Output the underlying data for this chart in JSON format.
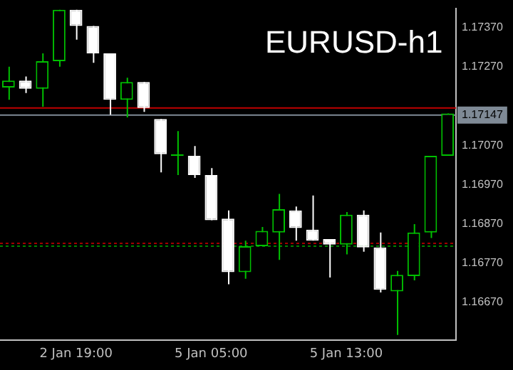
{
  "chart_data": {
    "type": "candlestick",
    "title": "EURUSD-h1",
    "categories": [
      null,
      null,
      null,
      null,
      "2 Jan 19:00",
      null,
      null,
      null,
      null,
      null,
      null,
      null,
      "5 Jan 05:00",
      null,
      null,
      null,
      null,
      null,
      null,
      null,
      "5 Jan 13:00",
      null,
      null,
      null,
      null,
      null,
      null
    ],
    "ohlc": [
      [
        1.17217,
        1.1727,
        1.17186,
        1.17235
      ],
      [
        1.17235,
        1.17245,
        1.17203,
        1.17214
      ],
      [
        1.17214,
        1.17304,
        1.17168,
        1.17284
      ],
      [
        1.17284,
        1.17415,
        1.1727,
        1.17415
      ],
      [
        1.17415,
        1.17415,
        1.17339,
        1.17374
      ],
      [
        1.17374,
        1.17374,
        1.1728,
        1.17304
      ],
      [
        1.17304,
        1.17304,
        1.17148,
        1.17186
      ],
      [
        1.17186,
        1.17242,
        1.17141,
        1.17231
      ],
      [
        1.17231,
        1.17231,
        1.17155,
        1.17165
      ],
      [
        1.17137,
        1.17137,
        1.17001,
        1.17047
      ],
      [
        1.17043,
        1.17106,
        1.16994,
        1.17047
      ],
      [
        1.17043,
        1.17068,
        1.16987,
        1.16994
      ],
      [
        1.16994,
        1.17012,
        1.16879,
        1.16879
      ],
      [
        1.16883,
        1.16904,
        1.16716,
        1.16747
      ],
      [
        1.16747,
        1.16827,
        1.1673,
        1.16813
      ],
      [
        1.16813,
        1.16862,
        1.16813,
        1.16852
      ],
      [
        1.16848,
        1.16946,
        1.16778,
        1.16907
      ],
      [
        1.16904,
        1.16914,
        1.16827,
        1.16859
      ],
      [
        1.16855,
        1.16942,
        1.16827,
        1.16827
      ],
      [
        1.16831,
        1.16831,
        1.16733,
        1.16817
      ],
      [
        1.16817,
        1.169,
        1.16792,
        1.16893
      ],
      [
        1.16893,
        1.16904,
        1.16799,
        1.1681
      ],
      [
        1.1681,
        1.16848,
        1.16695,
        1.16702
      ],
      [
        1.16698,
        1.1675,
        1.16587,
        1.1674
      ],
      [
        1.16737,
        1.16869,
        1.16726,
        1.16848
      ],
      [
        1.16848,
        1.17043,
        1.16834,
        1.17043
      ],
      [
        1.17043,
        1.17151,
        1.17043,
        1.17151
      ]
    ],
    "colors": [
      "#00c000",
      "#ffffff",
      "#00c000",
      "#00c000",
      "#ffffff",
      "#ffffff",
      "#ffffff",
      "#00c000",
      "#ffffff",
      "#ffffff",
      "#00c000",
      "#ffffff",
      "#ffffff",
      "#ffffff",
      "#00c000",
      "#00c000",
      "#00c000",
      "#ffffff",
      "#ffffff",
      "#ffffff",
      "#00c000",
      "#ffffff",
      "#ffffff",
      "#00c000",
      "#00c000",
      "#00c000",
      "#00c000"
    ],
    "ylim": [
      1.16573,
      1.17419
    ],
    "yticks": [
      {
        "value": 1.1737,
        "label": "1.17370"
      },
      {
        "value": 1.1727,
        "label": "1.17270"
      },
      {
        "value": 1.1707,
        "label": "1.17070"
      },
      {
        "value": 1.1697,
        "label": "1.16970"
      },
      {
        "value": 1.1687,
        "label": "1.16870"
      },
      {
        "value": 1.1677,
        "label": "1.16770"
      },
      {
        "value": 1.1667,
        "label": "1.16670"
      }
    ],
    "ref_lines": [
      {
        "axis": "y",
        "value": 1.17165,
        "color": "#c00000"
      },
      {
        "axis": "y",
        "value": 1.17147,
        "label": "1.17147",
        "color": "#7f8a96"
      },
      {
        "axis": "y",
        "value": 1.1682,
        "color": "#a00000",
        "line_style": "dotted"
      },
      {
        "axis": "y",
        "value": 1.16813,
        "color": "#008000",
        "line_style": "dotted"
      }
    ],
    "grid": false
  }
}
